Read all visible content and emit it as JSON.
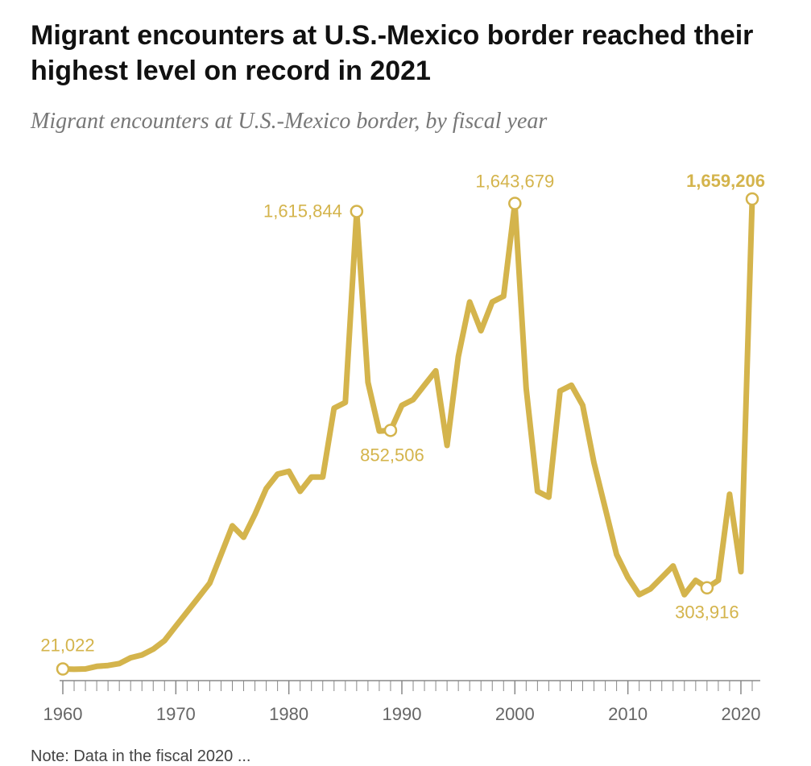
{
  "header": {
    "title": "Migrant encounters at U.S.-Mexico border reached their highest level on record in 2021",
    "subtitle": "Migrant encounters at U.S.-Mexico border, by fiscal year"
  },
  "note": "Note: Data in the fiscal 2020 ... ",
  "colors": {
    "line": "#d4b44c",
    "axis": "#888888",
    "tick_label": "#666666"
  },
  "chart_data": {
    "type": "line",
    "title": "",
    "xlabel": "",
    "ylabel": "",
    "xlim": [
      1960,
      2021
    ],
    "ylim": [
      0,
      1700000
    ],
    "x_ticks": [
      1960,
      1970,
      1980,
      1990,
      2000,
      2010,
      2020
    ],
    "grid": false,
    "series": [
      {
        "x": [
          1960,
          1961,
          1962,
          1963,
          1964,
          1965,
          1966,
          1967,
          1968,
          1969,
          1970,
          1971,
          1972,
          1973,
          1974,
          1975,
          1976,
          1977,
          1978,
          1979,
          1980,
          1981,
          1982,
          1983,
          1984,
          1985,
          1986,
          1987,
          1988,
          1989,
          1990,
          1991,
          1992,
          1993,
          1994,
          1995,
          1996,
          1997,
          1998,
          1999,
          2000,
          2001,
          2002,
          2003,
          2004,
          2005,
          2006,
          2007,
          2008,
          2009,
          2010,
          2011,
          2012,
          2013,
          2014,
          2015,
          2016,
          2017,
          2018,
          2019,
          2020,
          2021
        ],
        "values": [
          21022,
          20000,
          21000,
          30000,
          33000,
          40000,
          60000,
          70000,
          90000,
          120000,
          170000,
          220000,
          270000,
          320000,
          420000,
          520000,
          480000,
          560000,
          650000,
          700000,
          710000,
          640000,
          690000,
          690000,
          930000,
          950000,
          1615844,
          1020000,
          850000,
          852506,
          940000,
          960000,
          1010000,
          1060000,
          800000,
          1110000,
          1300000,
          1200000,
          1300000,
          1320000,
          1643679,
          1000000,
          640000,
          620000,
          990000,
          1010000,
          940000,
          740000,
          580000,
          420000,
          340000,
          280000,
          300000,
          340000,
          380000,
          280000,
          330000,
          303916,
          330000,
          630000,
          360000,
          1659206
        ]
      }
    ],
    "annotations": [
      {
        "x": 1960,
        "label": "21,022",
        "bold": false
      },
      {
        "x": 1986,
        "label": "1,615,844",
        "bold": false
      },
      {
        "x": 1989,
        "label": "852,506",
        "bold": false
      },
      {
        "x": 2000,
        "label": "1,643,679",
        "bold": false
      },
      {
        "x": 2017,
        "label": "303,916",
        "bold": false
      },
      {
        "x": 2021,
        "label": "1,659,206",
        "bold": true
      }
    ]
  }
}
